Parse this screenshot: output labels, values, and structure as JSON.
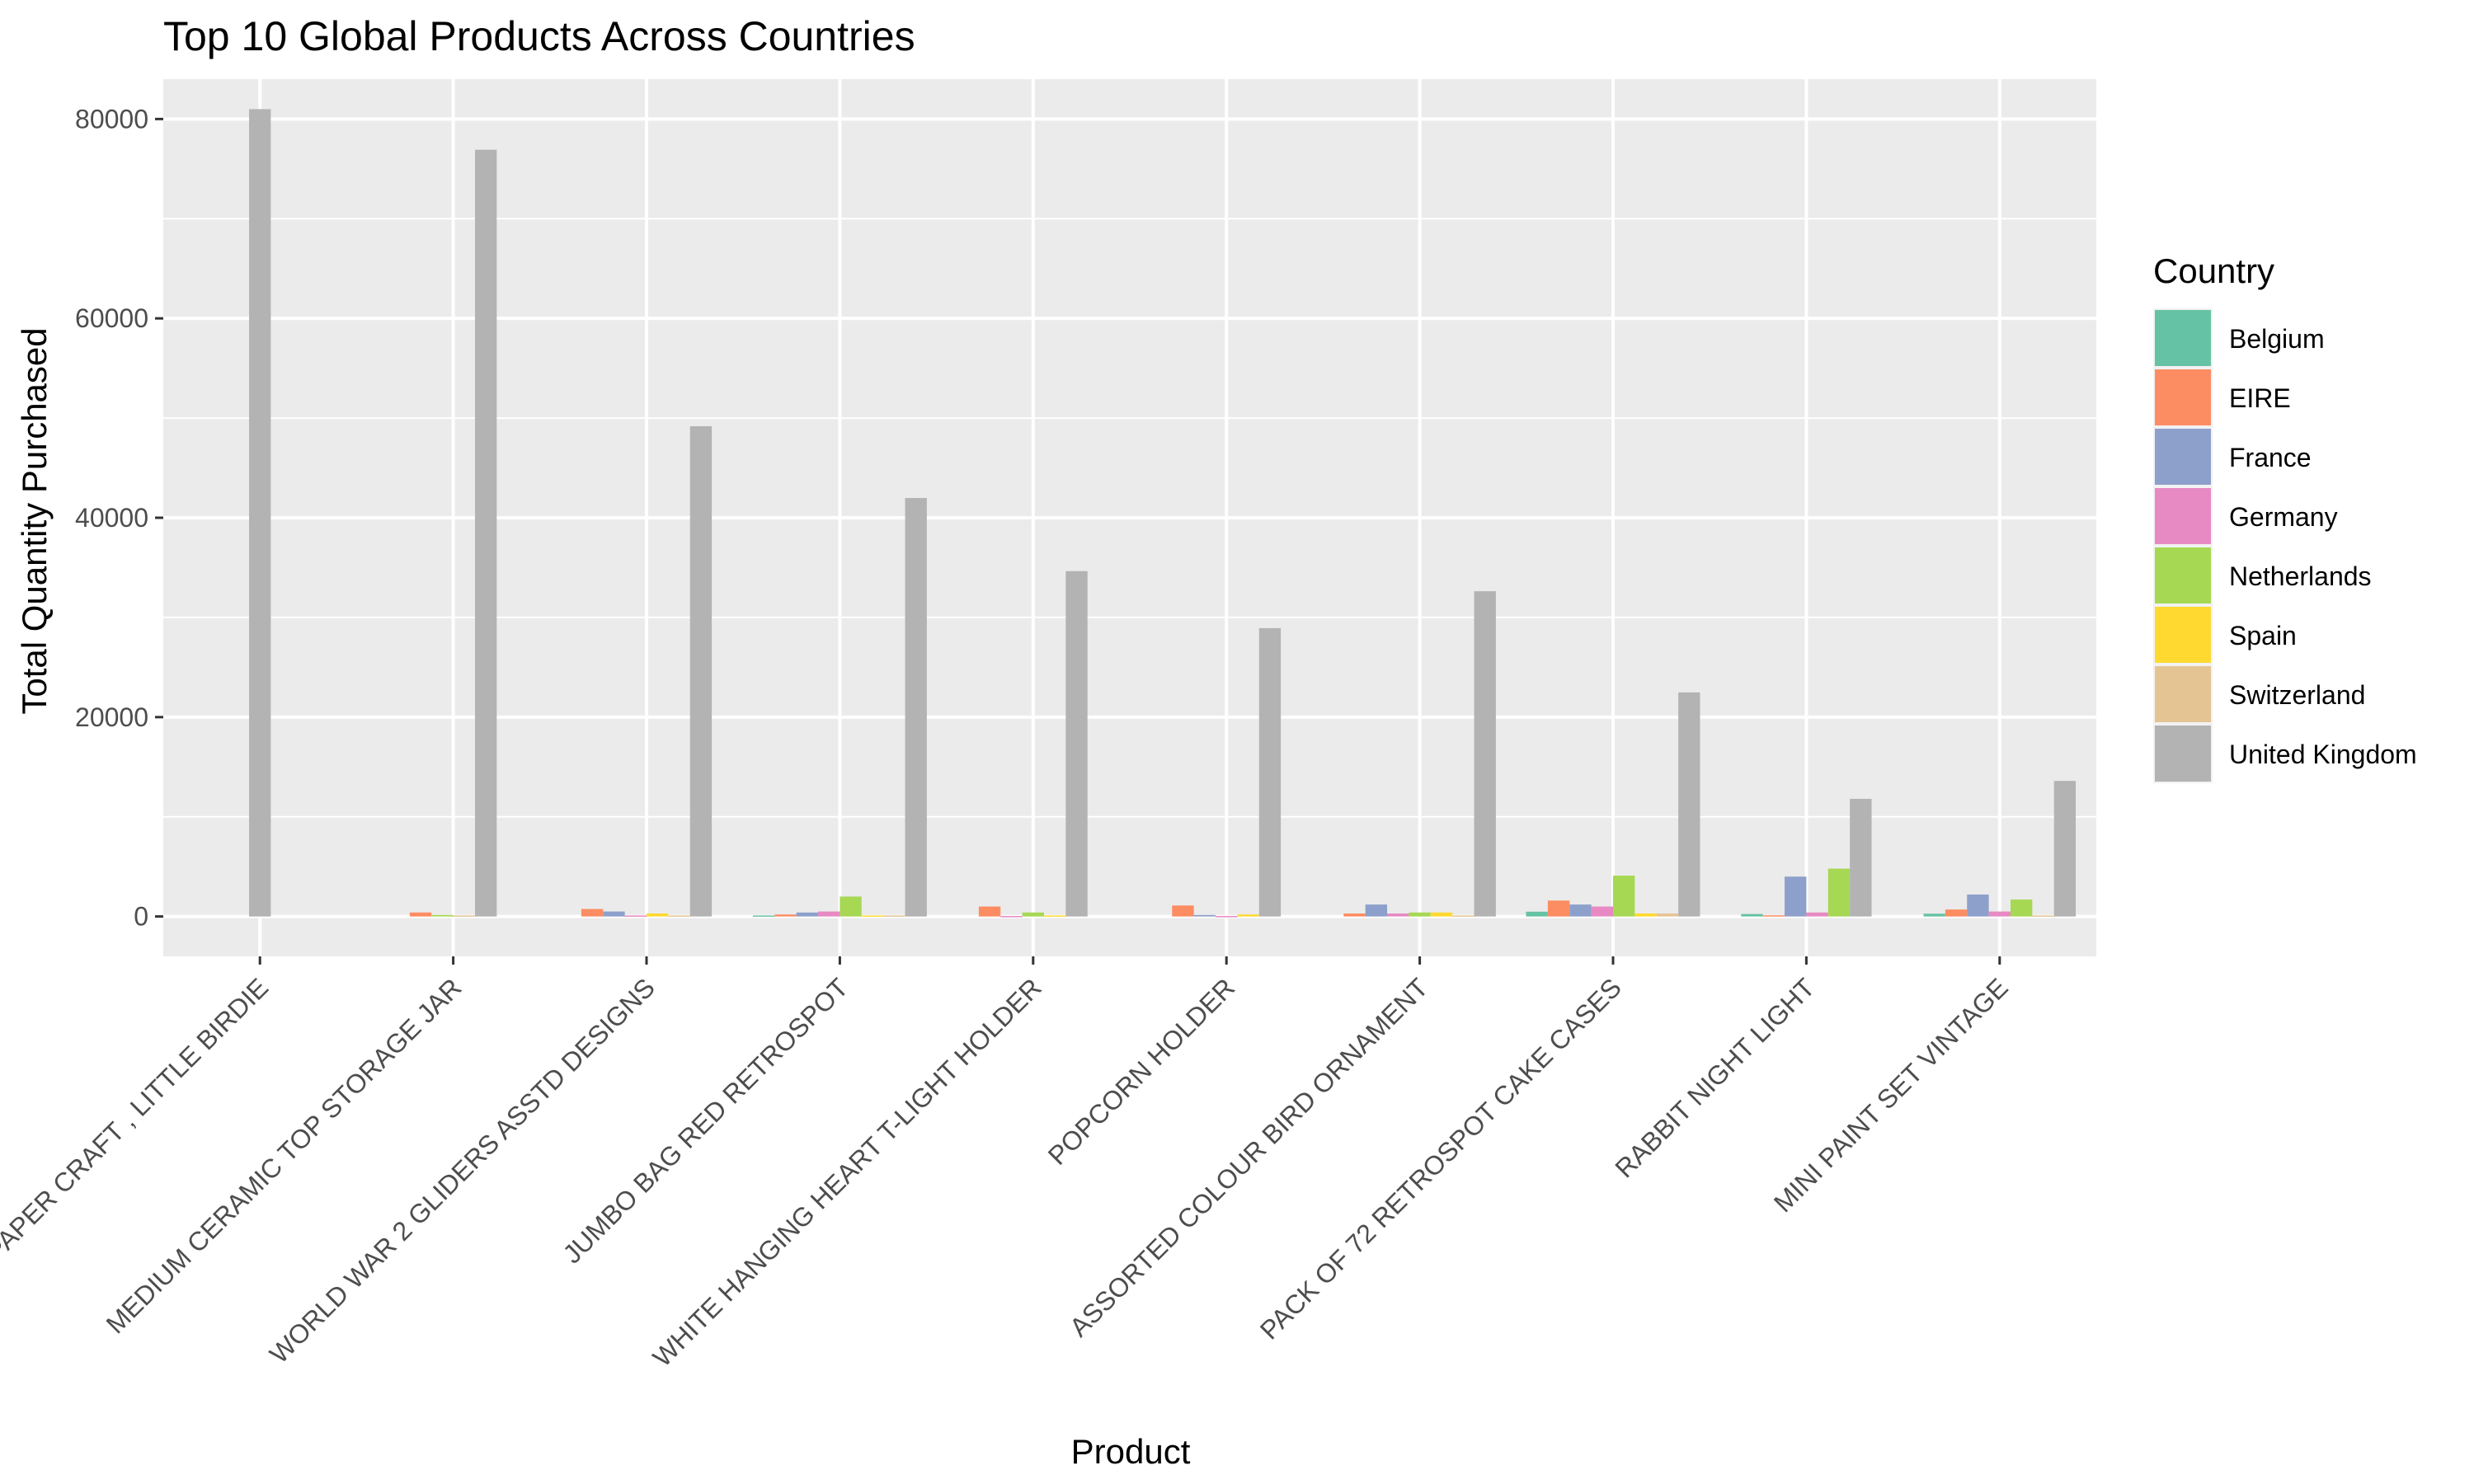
{
  "chart_data": {
    "type": "bar",
    "title": "Top 10 Global Products Across Countries",
    "xlabel": "Product",
    "ylabel": "Total Quantity Purchased",
    "ylim": [
      -4000,
      84000
    ],
    "yticks": [
      0,
      20000,
      40000,
      60000,
      80000
    ],
    "ytick_labels": [
      "0",
      "20000",
      "40000",
      "60000",
      "80000"
    ],
    "grid": true,
    "legend_title": "Country",
    "legend_position": "right",
    "categories": [
      "PAPER CRAFT , LITTLE BIRDIE",
      "MEDIUM CERAMIC TOP STORAGE JAR",
      "WORLD WAR 2 GLIDERS ASSTD DESIGNS",
      "JUMBO BAG RED RETROSPOT",
      "WHITE HANGING HEART T-LIGHT HOLDER",
      "POPCORN HOLDER",
      "ASSORTED COLOUR BIRD ORNAMENT",
      "PACK OF 72 RETROSPOT CAKE CASES",
      "RABBIT NIGHT LIGHT",
      "MINI PAINT SET VINTAGE"
    ],
    "series": [
      {
        "name": "Belgium",
        "color": "#66C2A5",
        "values": [
          null,
          null,
          null,
          100,
          null,
          null,
          null,
          480,
          250,
          280
        ]
      },
      {
        "name": "EIRE",
        "color": "#FC8D62",
        "values": [
          null,
          400,
          750,
          200,
          1000,
          1100,
          300,
          1600,
          120,
          700
        ]
      },
      {
        "name": "France",
        "color": "#8DA0CB",
        "values": [
          null,
          null,
          500,
          400,
          null,
          150,
          1200,
          1200,
          4000,
          2200
        ]
      },
      {
        "name": "Germany",
        "color": "#E78AC3",
        "values": [
          null,
          null,
          100,
          500,
          50,
          50,
          300,
          1000,
          400,
          500
        ]
      },
      {
        "name": "Netherlands",
        "color": "#A6D854",
        "values": [
          null,
          150,
          null,
          2000,
          400,
          null,
          400,
          4100,
          4800,
          1700
        ]
      },
      {
        "name": "Spain",
        "color": "#FFD92F",
        "values": [
          null,
          null,
          300,
          100,
          100,
          200,
          400,
          300,
          null,
          null
        ]
      },
      {
        "name": "Switzerland",
        "color": "#E5C494",
        "values": [
          null,
          100,
          100,
          100,
          null,
          null,
          100,
          300,
          null,
          100
        ]
      },
      {
        "name": "United Kingdom",
        "color": "#B3B3B3",
        "values": [
          80995,
          76919,
          49182,
          41981,
          34648,
          28923,
          32628,
          22478,
          11800,
          13600
        ]
      }
    ]
  }
}
